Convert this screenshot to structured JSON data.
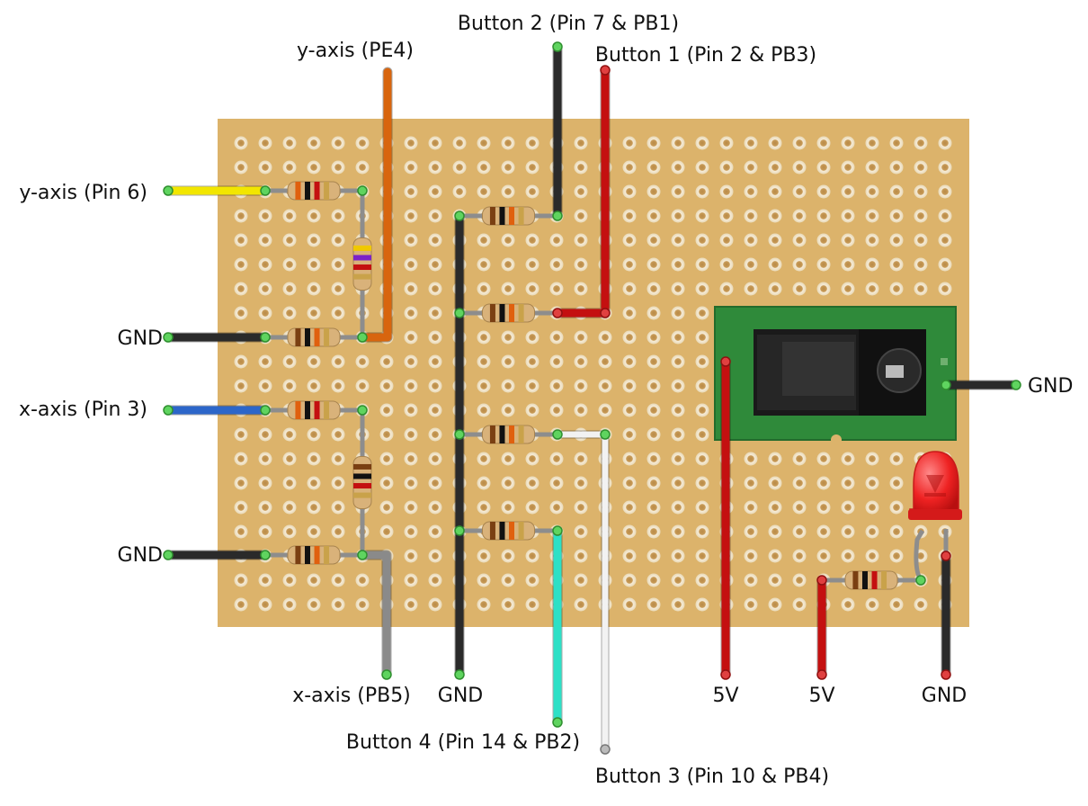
{
  "labels": {
    "button2": "Button 2 (Pin 7 & PB1)",
    "button1": "Button 1 (Pin 2 & PB3)",
    "y_axis_pe4": "y-axis (PE4)",
    "y_axis_pin6": "y-axis (Pin 6)",
    "gnd_left_top": "GND",
    "x_axis_pin3": "x-axis (Pin 3)",
    "gnd_left_bottom": "GND",
    "x_axis_pb5": "x-axis (PB5)",
    "gnd_bottom_1": "GND",
    "button4": "Button 4 (Pin 14 & PB2)",
    "button3": "Button 3 (Pin 10 & PB4)",
    "v5_a": "5V",
    "v5_b": "5V",
    "gnd_bottom_2": "GND",
    "gnd_right": "GND"
  },
  "colors": {
    "board": "#dcb36b",
    "hole_ring": "#f1e6cf",
    "hole_center": "#c89b57",
    "wire_yellow": "#f2e600",
    "wire_orange": "#d8650e",
    "wire_black": "#2a2a2a",
    "wire_red": "#c41010",
    "wire_blue": "#2c66c9",
    "wire_gray": "#8a8a8a",
    "wire_cyan": "#2de0c6",
    "wire_white": "#f2f2f2",
    "module_green": "#2f8a3a",
    "led_red": "#ee2222"
  },
  "icons": {
    "power_jack": "dc-barrel-jack-icon",
    "led": "red-led-icon",
    "resistor": "resistor-icon"
  }
}
